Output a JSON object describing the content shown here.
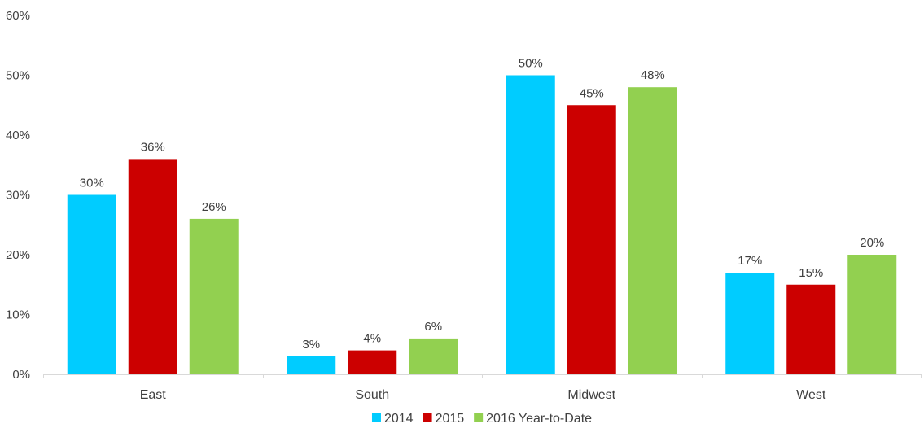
{
  "chart_data": {
    "type": "bar",
    "categories": [
      "East",
      "South",
      "Midwest",
      "West"
    ],
    "series": [
      {
        "name": "2014",
        "values": [
          30,
          3,
          50,
          17
        ],
        "color": "#00CCFF"
      },
      {
        "name": "2015",
        "values": [
          36,
          4,
          45,
          15
        ],
        "color": "#CC0000"
      },
      {
        "name": "2016 Year-to-Date",
        "values": [
          26,
          6,
          48,
          20
        ],
        "color": "#92D050"
      }
    ],
    "value_format": "percent",
    "ylim": [
      0,
      60
    ],
    "yticks": [
      0,
      10,
      20,
      30,
      40,
      50,
      60
    ],
    "ytick_labels": [
      "0%",
      "10%",
      "20%",
      "30%",
      "40%",
      "50%",
      "60%"
    ],
    "grid": false,
    "legend_position": "bottom",
    "colors": {
      "text": "#404040",
      "axis": "#D9D9D9"
    }
  }
}
